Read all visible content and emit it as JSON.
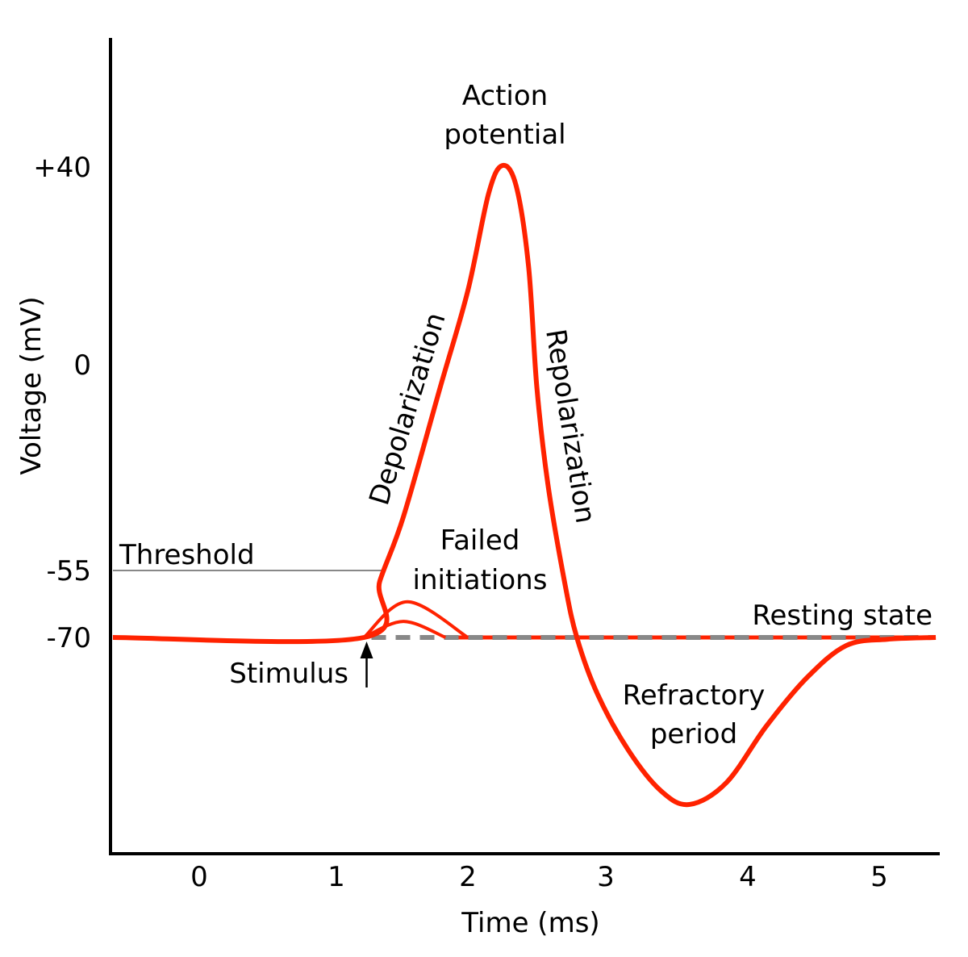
{
  "chart_data": {
    "type": "line",
    "xlabel": "Time (ms)",
    "ylabel": "Voltage (mV)",
    "x_ticks": [
      0,
      1,
      2,
      3,
      4,
      5
    ],
    "x_tick_labels": [
      "0",
      "1",
      "2",
      "3",
      "4",
      "5"
    ],
    "y_ticks": [
      40,
      0,
      -55,
      -70
    ],
    "y_tick_labels": [
      "+40",
      "0",
      "-55",
      "-70"
    ],
    "grid": false,
    "colors": {
      "curve": "#ff2200",
      "threshold": "#888888",
      "resting_dashes": "#888888",
      "axes": "#000000"
    },
    "action_potential": {
      "x": [
        -0.63,
        1.21,
        1.33,
        1.51,
        1.79,
        2.0,
        2.15,
        2.25,
        2.35,
        2.44,
        2.5,
        2.58,
        2.7,
        2.79,
        2.94,
        3.16,
        3.39,
        3.59,
        3.85,
        4.14,
        4.45,
        4.75,
        5.06,
        5.43
      ],
      "y": [
        -70,
        -70,
        -57.4,
        -40.6,
        -6.0,
        15.0,
        34.6,
        40.3,
        36.2,
        19.9,
        -6.0,
        -31.9,
        -57.4,
        -70,
        -82.7,
        -95.3,
        -104.4,
        -107.4,
        -102.5,
        -89.9,
        -79.0,
        -71.8,
        -70.4,
        -70
      ]
    },
    "failed_initiations": [
      {
        "x": [
          1.21,
          1.54,
          2.0
        ],
        "y": [
          -70,
          -62.0,
          -70
        ]
      },
      {
        "x": [
          1.21,
          1.51,
          1.83
        ],
        "y": [
          -70,
          -66.4,
          -70
        ]
      }
    ],
    "threshold": {
      "y": -55,
      "x_end": 1.36,
      "label": "Threshold"
    },
    "resting": {
      "y": -70,
      "label": "Resting state"
    },
    "stimulus": {
      "x": 1.23,
      "label": "Stimulus"
    },
    "annotations": {
      "action_potential": [
        "Action",
        "potential"
      ],
      "depolarization": "Depolarization",
      "repolarization": "Repolarization",
      "failed": [
        "Failed",
        "initiations"
      ],
      "refractory": [
        "Refractory",
        "period"
      ]
    }
  }
}
